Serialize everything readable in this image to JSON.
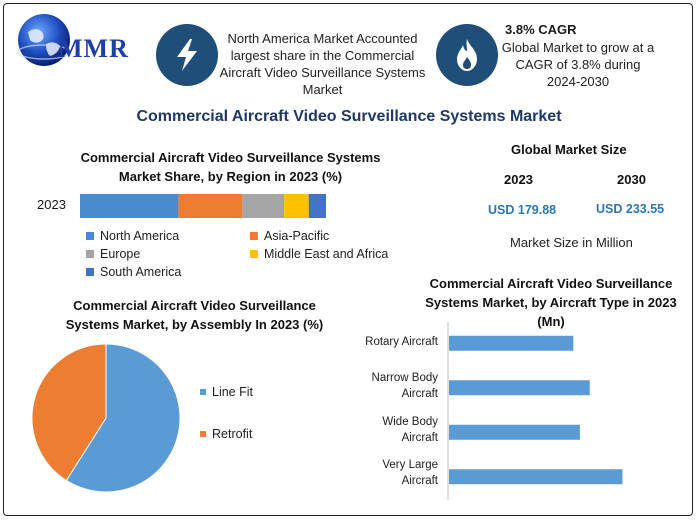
{
  "brand": {
    "logo_text": "MMR"
  },
  "colors": {
    "north_america": "#4a8ad0",
    "asia_pacific": "#ed7d31",
    "europe": "#a5a5a5",
    "middle_east_africa": "#ffc000",
    "south_america": "#4472c4",
    "line_fit": "#5b9bd5",
    "retrofit": "#ed7d31",
    "type_bar": "#5b9bd5",
    "title": "#1f3864",
    "value_blue": "#2e75b6"
  },
  "info": {
    "box1_text": "North America Market Accounted largest share in the Commercial Aircraft Video Surveillance Systems Market",
    "box1_icon": "lightning-bolt-icon",
    "box2_title": "3.8% CAGR",
    "box2_text": "Global Market to grow at a CAGR of 3.8% during 2024-2030",
    "box2_icon": "flame-icon"
  },
  "main_title": "Commercial Aircraft Video Surveillance Systems Market",
  "global_market": {
    "title": "Global Market Size",
    "year1": "2023",
    "year2": "2030",
    "value1": "USD 179.88",
    "value2": "USD 233.55",
    "footnote": "Market Size in Million"
  },
  "chart_data": [
    {
      "type": "bar",
      "orientation": "horizontal-stacked",
      "title": "Commercial Aircraft Video Surveillance Systems Market Share, by Region in 2023 (%)",
      "categories": [
        "2023"
      ],
      "series": [
        {
          "name": "North America",
          "values": [
            40
          ]
        },
        {
          "name": "Asia-Pacific",
          "values": [
            26
          ]
        },
        {
          "name": "Europe",
          "values": [
            17
          ]
        },
        {
          "name": "Middle East and Africa",
          "values": [
            10
          ]
        },
        {
          "name": "South America",
          "values": [
            7
          ]
        }
      ]
    },
    {
      "type": "pie",
      "title": "Commercial Aircraft Video Surveillance Systems Market, by Assembly In 2023 (%)",
      "labels": [
        "Line Fit",
        "Retrofit"
      ],
      "values": [
        59,
        41
      ],
      "legend": "right"
    },
    {
      "type": "bar",
      "orientation": "horizontal",
      "title": "Commercial Aircraft Video Surveillance Systems Market, by Aircraft Type in 2023 (Mn)",
      "categories": [
        "Rotary Aircraft",
        "Narrow Body Aircraft",
        "Wide Body Aircraft",
        "Very Large Aircraft"
      ],
      "values": [
        38,
        43,
        40,
        53
      ]
    }
  ]
}
